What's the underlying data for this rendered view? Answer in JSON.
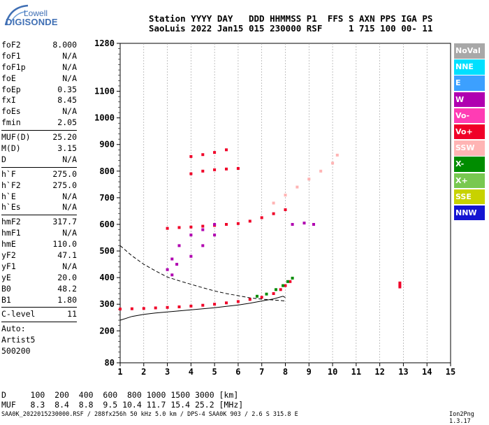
{
  "logo": {
    "brand": "Lowell",
    "product": "DIGISONDE"
  },
  "header": {
    "line1": "Station YYYY DAY   DDD HHMMSS P1  FFS S AXN PPS IGA PS",
    "line2": "SaoLuis 2022 Jan15 015 230000 RSF     1 715 100 00- 11"
  },
  "params": {
    "g1": [
      {
        "k": "foF2",
        "v": "8.000"
      },
      {
        "k": "foF1",
        "v": "N/A"
      },
      {
        "k": "foF1p",
        "v": "N/A"
      },
      {
        "k": "foE",
        "v": "N/A"
      },
      {
        "k": "foEp",
        "v": "0.35"
      },
      {
        "k": "fxI",
        "v": "8.45"
      },
      {
        "k": "foEs",
        "v": "N/A"
      },
      {
        "k": "fmin",
        "v": "2.05"
      }
    ],
    "g2": [
      {
        "k": "MUF(D)",
        "v": "25.20"
      },
      {
        "k": "M(D)",
        "v": "3.15"
      },
      {
        "k": "D",
        "v": "N/A"
      }
    ],
    "g3": [
      {
        "k": "h`F",
        "v": "275.0"
      },
      {
        "k": "h`F2",
        "v": "275.0"
      },
      {
        "k": "h`E",
        "v": "N/A"
      },
      {
        "k": "h`Es",
        "v": "N/A"
      }
    ],
    "g4": [
      {
        "k": "hmF2",
        "v": "317.7"
      },
      {
        "k": "hmF1",
        "v": "N/A"
      },
      {
        "k": "hmE",
        "v": "110.0"
      },
      {
        "k": "yF2",
        "v": "47.1"
      },
      {
        "k": "yF1",
        "v": "N/A"
      },
      {
        "k": "yE",
        "v": "20.0"
      },
      {
        "k": "B0",
        "v": "48.2"
      },
      {
        "k": "B1",
        "v": "1.80"
      }
    ],
    "g5": [
      {
        "k": "C-level",
        "v": "11"
      }
    ],
    "auto": [
      "Auto:",
      "Artist5",
      "500200"
    ]
  },
  "footer": {
    "d_line": "D     100  200  400  600  800 1000 1500 3000 [km]",
    "muf_line": "MUF   8.3  8.4  8.8  9.5 10.4 11.7 15.4 25.2 [MHz]",
    "file_line": "SAA0K_2022015230000.RSF / 288fx256h 50 kHz 5.0 km / DPS-4 SAA0K 903 / 2.6 S 315.8 E",
    "version": "Ion2Png 1.3.17"
  },
  "legend": [
    {
      "label": "NoVal",
      "color": "#a8a8a8"
    },
    {
      "label": "NNE",
      "color": "#00e0ff"
    },
    {
      "label": "E",
      "color": "#3ca0ff"
    },
    {
      "label": "W",
      "color": "#b000b0"
    },
    {
      "label": "Vo-",
      "color": "#ff3cb4"
    },
    {
      "label": "Vo+",
      "color": "#f00028"
    },
    {
      "label": "SSW",
      "color": "#ffb4b4"
    },
    {
      "label": "X-",
      "color": "#008c00"
    },
    {
      "label": "X+",
      "color": "#78c850"
    },
    {
      "label": "SSE",
      "color": "#c8d200"
    },
    {
      "label": "NNW",
      "color": "#1414d2"
    }
  ],
  "chart_data": {
    "type": "scatter",
    "title": "",
    "xlabel": "",
    "ylabel": "",
    "xlim": [
      1,
      15
    ],
    "ylim": [
      80,
      1280
    ],
    "x_ticks": [
      1,
      2,
      3,
      4,
      5,
      6,
      7,
      8,
      9,
      10,
      11,
      12,
      13,
      14,
      15
    ],
    "y_ticks": [
      80,
      200,
      300,
      400,
      500,
      600,
      700,
      800,
      900,
      1000,
      1100,
      1280
    ],
    "grid": "dashed-vertical",
    "legend_position": "right",
    "series": [
      {
        "color": "#f00028",
        "points": [
          [
            1,
            282
          ],
          [
            1.5,
            283
          ],
          [
            2,
            284
          ],
          [
            2.5,
            286
          ],
          [
            3,
            288
          ],
          [
            3.5,
            290
          ],
          [
            4,
            293
          ],
          [
            4.5,
            296
          ],
          [
            5,
            300
          ],
          [
            5.5,
            305
          ],
          [
            6,
            310
          ],
          [
            6.5,
            318
          ],
          [
            7,
            326
          ],
          [
            7.5,
            340
          ],
          [
            7.8,
            355
          ],
          [
            8,
            370
          ],
          [
            8.2,
            385
          ]
        ]
      },
      {
        "color": "#008c00",
        "points": [
          [
            6.8,
            330
          ],
          [
            7.2,
            338
          ],
          [
            7.6,
            355
          ],
          [
            7.9,
            370
          ],
          [
            8.1,
            385
          ],
          [
            8.3,
            398
          ]
        ]
      },
      {
        "color": "#f00028",
        "points": [
          [
            3,
            585
          ],
          [
            3.5,
            588
          ],
          [
            4,
            590
          ],
          [
            4.5,
            593
          ],
          [
            5,
            596
          ],
          [
            5.5,
            600
          ],
          [
            6,
            603
          ],
          [
            6.5,
            612
          ],
          [
            7,
            625
          ],
          [
            7.5,
            640
          ],
          [
            8,
            655
          ]
        ]
      },
      {
        "color": "#ffb4b4",
        "points": [
          [
            7.5,
            680
          ],
          [
            8,
            710
          ],
          [
            8.5,
            740
          ],
          [
            9,
            770
          ],
          [
            9.5,
            800
          ],
          [
            10,
            830
          ],
          [
            10.2,
            860
          ]
        ]
      },
      {
        "color": "#b000b0",
        "points": [
          [
            3,
            430
          ],
          [
            3.2,
            470
          ],
          [
            3.5,
            520
          ],
          [
            4,
            560
          ],
          [
            4.5,
            580
          ],
          [
            5,
            600
          ],
          [
            3.2,
            410
          ],
          [
            3.4,
            450
          ],
          [
            4,
            480
          ],
          [
            4.5,
            520
          ],
          [
            5,
            560
          ],
          [
            8.3,
            600
          ],
          [
            8.8,
            605
          ],
          [
            9.2,
            600
          ]
        ]
      },
      {
        "color": "#f00028",
        "points": [
          [
            4,
            790
          ],
          [
            4.5,
            800
          ],
          [
            5,
            805
          ],
          [
            5.5,
            808
          ],
          [
            6,
            810
          ],
          [
            4,
            855
          ],
          [
            4.5,
            862
          ],
          [
            5,
            870
          ],
          [
            5.5,
            880
          ]
        ]
      },
      {
        "color": "#f00028",
        "points": [
          [
            12.85,
            380
          ],
          [
            12.85,
            365
          ],
          [
            12.85,
            372
          ]
        ]
      }
    ],
    "curves": [
      {
        "style": "solid",
        "points": [
          [
            1,
            240
          ],
          [
            1.5,
            254
          ],
          [
            2,
            262
          ],
          [
            2.5,
            267
          ],
          [
            3,
            271
          ],
          [
            3.5,
            275
          ],
          [
            4,
            279
          ],
          [
            4.5,
            283
          ],
          [
            5,
            287
          ],
          [
            5.5,
            292
          ],
          [
            6,
            297
          ],
          [
            6.5,
            304
          ],
          [
            7,
            312
          ],
          [
            7.5,
            320
          ],
          [
            7.9,
            330
          ],
          [
            8,
            325
          ]
        ]
      },
      {
        "style": "dashed",
        "points": [
          [
            1,
            520
          ],
          [
            1.5,
            482
          ],
          [
            2,
            450
          ],
          [
            2.5,
            425
          ],
          [
            3,
            402
          ],
          [
            3.5,
            388
          ],
          [
            4,
            375
          ],
          [
            4.5,
            362
          ],
          [
            5,
            350
          ],
          [
            5.5,
            340
          ],
          [
            6,
            332
          ],
          [
            6.5,
            324
          ],
          [
            7,
            319
          ],
          [
            7.5,
            316
          ],
          [
            8,
            312
          ]
        ]
      }
    ]
  }
}
